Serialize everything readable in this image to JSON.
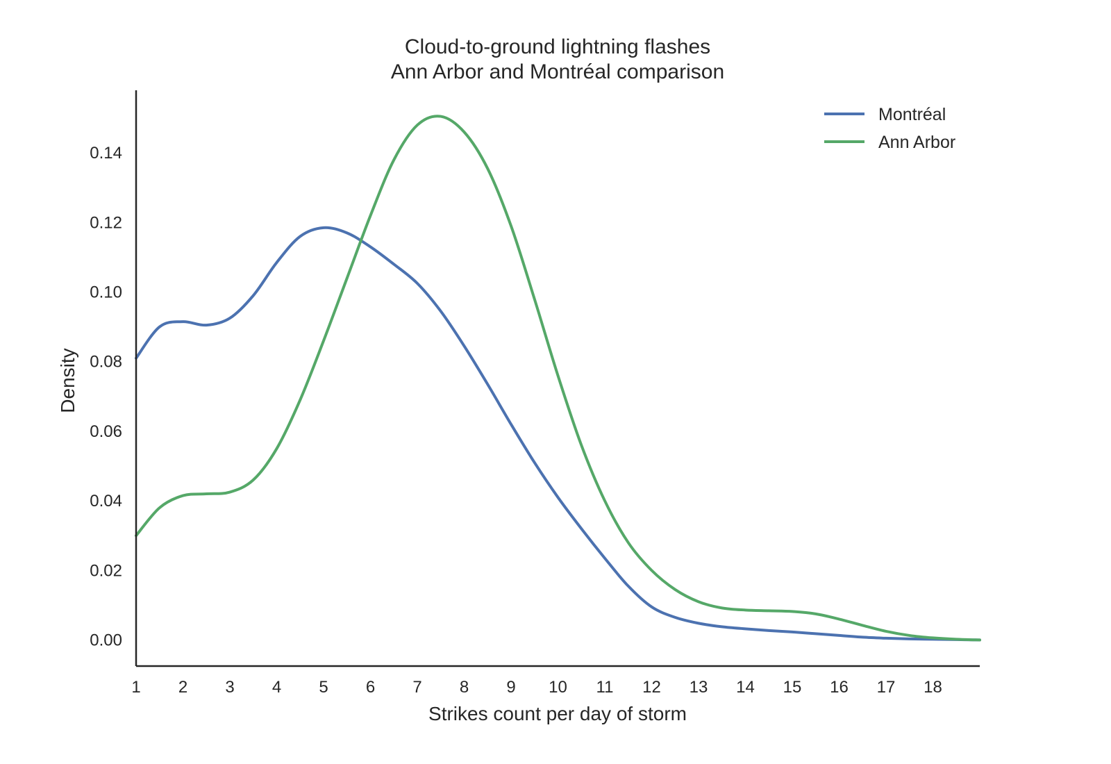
{
  "chart_data": {
    "type": "line",
    "title": [
      "Cloud-to-ground lightning flashes",
      "Ann Arbor and Montréal comparison"
    ],
    "xlabel": "Strikes count per day of storm",
    "ylabel": "Density",
    "xlim": [
      1,
      19
    ],
    "ylim": [
      -0.0075,
      0.158
    ],
    "x_ticks": [
      "1",
      "2",
      "3",
      "4",
      "5",
      "6",
      "7",
      "8",
      "9",
      "10",
      "11",
      "12",
      "13",
      "14",
      "15",
      "16",
      "17",
      "18"
    ],
    "y_ticks": [
      "0.00",
      "0.02",
      "0.04",
      "0.06",
      "0.08",
      "0.10",
      "0.12",
      "0.14"
    ],
    "grid": false,
    "legend_position": "top-right",
    "series": [
      {
        "name": "Montréal",
        "color": "#4c72b0",
        "x": [
          1,
          1.5,
          2,
          2.5,
          3,
          3.5,
          4,
          4.5,
          5,
          5.5,
          6,
          6.5,
          7,
          7.5,
          8,
          8.5,
          9,
          9.5,
          10,
          10.5,
          11,
          11.5,
          12,
          12.5,
          13,
          13.5,
          14,
          14.5,
          15,
          15.5,
          16,
          16.5,
          17,
          17.5,
          18,
          18.5,
          19
        ],
        "y": [
          0.081,
          0.09,
          0.0915,
          0.0905,
          0.0925,
          0.099,
          0.1085,
          0.116,
          0.1185,
          0.117,
          0.113,
          0.108,
          0.1025,
          0.0945,
          0.0845,
          0.0735,
          0.062,
          0.051,
          0.041,
          0.032,
          0.0235,
          0.0155,
          0.0095,
          0.0065,
          0.0048,
          0.0038,
          0.0032,
          0.0027,
          0.0023,
          0.0018,
          0.0013,
          0.0008,
          0.0005,
          0.0003,
          0.0002,
          0.0001,
          0.0
        ]
      },
      {
        "name": "Ann Arbor",
        "color": "#55a868",
        "x": [
          1,
          1.5,
          2,
          2.5,
          3,
          3.5,
          4,
          4.5,
          5,
          5.5,
          6,
          6.5,
          7,
          7.5,
          8,
          8.5,
          9,
          9.5,
          10,
          10.5,
          11,
          11.5,
          12,
          12.5,
          13,
          13.5,
          14,
          14.5,
          15,
          15.5,
          16,
          16.5,
          17,
          17.5,
          18,
          18.5,
          19
        ],
        "y": [
          0.03,
          0.038,
          0.0415,
          0.042,
          0.0425,
          0.046,
          0.055,
          0.069,
          0.086,
          0.104,
          0.122,
          0.138,
          0.148,
          0.1505,
          0.146,
          0.1355,
          0.119,
          0.098,
          0.076,
          0.056,
          0.04,
          0.028,
          0.02,
          0.0145,
          0.011,
          0.0092,
          0.0086,
          0.0084,
          0.0082,
          0.0075,
          0.006,
          0.0042,
          0.0025,
          0.0013,
          0.0006,
          0.0002,
          0.0
        ]
      }
    ]
  }
}
